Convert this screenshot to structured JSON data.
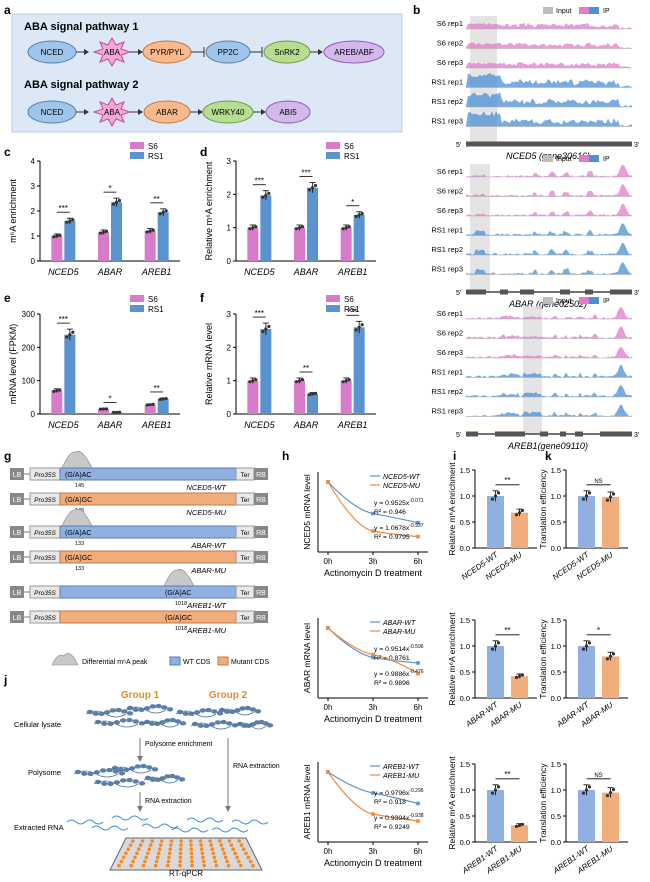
{
  "panel_labels": {
    "a": "a",
    "b": "b",
    "c": "c",
    "d": "d",
    "e": "e",
    "f": "f",
    "g": "g",
    "h": "h",
    "i": "i",
    "j": "j",
    "k": "k"
  },
  "colors": {
    "s6": "#d77ac9",
    "rs1": "#5b93cf",
    "wt": "#8fb0e0",
    "mu": "#f1ad7c",
    "input": "#bdbdbd",
    "ip": "#4b8fd6",
    "sig_bg": "#dce8f6",
    "highlight": "#d9d9d9"
  },
  "panel_a": {
    "pathway1_title": "ABA signal pathway 1",
    "pathway1_nodes": [
      "NCED",
      "ABA",
      "PYR/PYL",
      "PP2C",
      "SnRK2",
      "AREB/ABF"
    ],
    "pathway2_title": "ABA signal pathway 2",
    "pathway2_nodes": [
      "NCED",
      "ABA",
      "ABAR",
      "WRKY40",
      "ABI5"
    ]
  },
  "panel_b": {
    "legend": {
      "input": "Input",
      "ip": "IP"
    },
    "tracks": [
      "S6 rep1",
      "S6 rep2",
      "S6 rep3",
      "RS1 rep1",
      "RS1 rep2",
      "RS1 rep3"
    ],
    "genes": [
      "NCED5 (gene30616)",
      "ABAR (gene02502)",
      "AREB1(gene09110)"
    ],
    "five_prime": "5'",
    "three_prime": "3'"
  },
  "legend_s6rs1": {
    "s6": "S6",
    "rs1": "RS1"
  },
  "chart_data": [
    {
      "panel": "c",
      "type": "bar",
      "categories": [
        "NCED5",
        "ABAR",
        "AREB1"
      ],
      "ylabel": "m⁶A enrichment",
      "ylim": [
        0,
        4
      ],
      "yticks": [
        0,
        1,
        2,
        3,
        4
      ],
      "series": [
        {
          "name": "S6",
          "values": [
            1.0,
            1.15,
            1.2
          ]
        },
        {
          "name": "RS1",
          "values": [
            1.6,
            2.35,
            1.95
          ]
        }
      ],
      "significance": [
        "***",
        "*",
        "**"
      ]
    },
    {
      "panel": "d",
      "type": "bar",
      "categories": [
        "NCED5",
        "ABAR",
        "AREB1"
      ],
      "ylabel": "Relative m⁶A enrichment",
      "ylim": [
        0,
        3
      ],
      "yticks": [
        0,
        1,
        2,
        3
      ],
      "series": [
        {
          "name": "S6",
          "values": [
            1.0,
            1.0,
            1.0
          ]
        },
        {
          "name": "RS1",
          "values": [
            1.97,
            2.2,
            1.38
          ]
        }
      ],
      "significance": [
        "***",
        "***",
        "*"
      ]
    },
    {
      "panel": "e",
      "type": "bar",
      "categories": [
        "NCED5",
        "ABAR",
        "AREB1"
      ],
      "ylabel": "mRNA level (FPKM)",
      "ylim": [
        0,
        300
      ],
      "yticks": [
        0,
        100,
        200,
        300
      ],
      "series": [
        {
          "name": "S6",
          "values": [
            70,
            15,
            28
          ]
        },
        {
          "name": "RS1",
          "values": [
            238,
            5,
            45
          ]
        }
      ],
      "significance": [
        "***",
        "*",
        "**"
      ]
    },
    {
      "panel": "f",
      "type": "bar",
      "categories": [
        "NCED5",
        "ABAR",
        "AREB1"
      ],
      "ylabel": "Relative mRNA level",
      "ylim": [
        0,
        3
      ],
      "yticks": [
        0,
        1,
        2,
        3
      ],
      "series": [
        {
          "name": "S6",
          "values": [
            1.0,
            1.0,
            1.0
          ]
        },
        {
          "name": "RS1",
          "values": [
            2.55,
            0.6,
            2.6
          ]
        }
      ],
      "significance": [
        "***",
        "**",
        "***"
      ]
    },
    {
      "panel": "h1",
      "type": "line",
      "xlabel": "Actinomycin D treatment",
      "ylabel": "NCED5 mRNA level",
      "x": [
        "0h",
        "3h",
        "6h"
      ],
      "series": [
        {
          "name": "NCED5-WT",
          "values": [
            1.0,
            0.55,
            0.42
          ]
        },
        {
          "name": "NCED5-MU",
          "values": [
            1.0,
            0.3,
            0.22
          ]
        }
      ],
      "equations": [
        {
          "eq": "y = 0.9525x",
          "exp": "-0.071",
          "r2": "R² = 0.946"
        },
        {
          "eq": "y = 1.0678x",
          "exp": "-0.937",
          "r2": "R² = 0.9795"
        }
      ]
    },
    {
      "panel": "h2",
      "type": "line",
      "xlabel": "Actinomycin D treatment",
      "ylabel": "ABAR mRNA level",
      "x": [
        "0h",
        "3h",
        "6h"
      ],
      "series": [
        {
          "name": "ABAR-WT",
          "values": [
            1.0,
            0.58,
            0.5
          ]
        },
        {
          "name": "ABAR-MU",
          "values": [
            1.0,
            0.62,
            0.35
          ]
        }
      ],
      "equations": [
        {
          "eq": "y = 0.9514x",
          "exp": "-0.596",
          "r2": "R² = 0.8761"
        },
        {
          "eq": "y = 0.9886x",
          "exp": "-0.476",
          "r2": "R² = 0.9896"
        }
      ]
    },
    {
      "panel": "h3",
      "type": "line",
      "xlabel": "Actinomycin D treatment",
      "ylabel": "AREB1 mRNA level",
      "x": [
        "0h",
        "3h",
        "6h"
      ],
      "series": [
        {
          "name": "AREB1-WT",
          "values": [
            1.0,
            0.7,
            0.55
          ]
        },
        {
          "name": "AREB1-MU",
          "values": [
            1.0,
            0.4,
            0.3
          ]
        }
      ],
      "equations": [
        {
          "eq": "y = 0.9796x",
          "exp": "-0.296",
          "r2": "R² = 0.918"
        },
        {
          "eq": "y = 0.9394x",
          "exp": "-0.938",
          "r2": "R² = 0.9249"
        }
      ]
    },
    {
      "panel": "i1",
      "type": "bar",
      "ylabel": "Relative m⁶A enrichment",
      "categories": [
        "NCED5-WT",
        "NCED5-MU"
      ],
      "values": [
        1.0,
        0.68
      ],
      "ylim": [
        0,
        1.5
      ],
      "yticks": [
        0.0,
        0.5,
        1.0,
        1.5
      ],
      "significance": "**"
    },
    {
      "panel": "i2",
      "type": "bar",
      "ylabel": "Relative m⁶A enrichment",
      "categories": [
        "ABAR-WT",
        "ABAR-MU"
      ],
      "values": [
        1.0,
        0.42
      ],
      "ylim": [
        0,
        1.5
      ],
      "yticks": [
        0.0,
        0.5,
        1.0,
        1.5
      ],
      "significance": "**"
    },
    {
      "panel": "i3",
      "type": "bar",
      "ylabel": "Relative m⁶A enrichment",
      "categories": [
        "AREB1-WT",
        "AREB1-MU"
      ],
      "values": [
        1.0,
        0.32
      ],
      "ylim": [
        0,
        1.5
      ],
      "yticks": [
        0.0,
        0.5,
        1.0,
        1.5
      ],
      "significance": "**"
    },
    {
      "panel": "k1",
      "type": "bar",
      "ylabel": "Translation efficiency",
      "categories": [
        "NCED5-WT",
        "NCED5-MU"
      ],
      "values": [
        1.0,
        0.98
      ],
      "ylim": [
        0,
        1.5
      ],
      "yticks": [
        0.0,
        0.5,
        1.0,
        1.5
      ],
      "significance": "NS"
    },
    {
      "panel": "k2",
      "type": "bar",
      "ylabel": "Translation efficiency",
      "categories": [
        "ABAR-WT",
        "ABAR-MU"
      ],
      "values": [
        1.0,
        0.8
      ],
      "ylim": [
        0,
        1.5
      ],
      "yticks": [
        0.0,
        0.5,
        1.0,
        1.5
      ],
      "significance": "*"
    },
    {
      "panel": "k3",
      "type": "bar",
      "ylabel": "Translation efficiency",
      "categories": [
        "AREB1-WT",
        "AREB1-MU"
      ],
      "values": [
        1.0,
        0.95
      ],
      "ylim": [
        0,
        1.5
      ],
      "yticks": [
        0.0,
        0.5,
        1.0,
        1.5
      ],
      "significance": "NS"
    }
  ],
  "panel_g": {
    "lb": "LB",
    "rb": "RB",
    "promoter": "Pro35S",
    "ter": "Ter",
    "constructs": [
      {
        "name": "NCED5-WT",
        "motif": "(G/A)AC",
        "pos": "145",
        "mut": false
      },
      {
        "name": "NCED5-MU",
        "motif": "(G/A)GC",
        "pos": "145",
        "mut": true
      },
      {
        "name": "ABAR-WT",
        "motif": "(G/A)AC",
        "pos": "133",
        "mut": false
      },
      {
        "name": "ABAR-MU",
        "motif": "(G/A)GC",
        "pos": "133",
        "mut": true
      },
      {
        "name": "AREB1-WT",
        "motif": "(G/A)AC",
        "pos": "1018",
        "mut": false
      },
      {
        "name": "AREB1-MU",
        "motif": "(G/A)GC",
        "pos": "1018",
        "mut": true
      }
    ],
    "legend": {
      "peak": "Differential m⁶A peak",
      "wt": "WT CDS",
      "mu": "Mutant CDS"
    }
  },
  "panel_j": {
    "group1": "Group 1",
    "group2": "Group 2",
    "cellular": "Cellular lysate",
    "polysome_enrich": "Polysome enrichment",
    "polysome": "Polysome",
    "rna_extraction1": "RNA extraction",
    "rna_extraction2": "RNA extraction",
    "extracted": "Extracted RNA",
    "qpcr": "RT-qPCR"
  }
}
